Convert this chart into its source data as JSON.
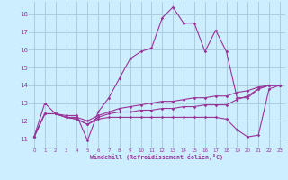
{
  "xlabel": "Windchill (Refroidissement éolien,°C)",
  "background_color": "#cceeff",
  "grid_color": "#aaccdd",
  "line_color": "#993399",
  "x_ticks": [
    0,
    1,
    2,
    3,
    4,
    5,
    6,
    7,
    8,
    9,
    10,
    11,
    12,
    13,
    14,
    15,
    16,
    17,
    18,
    19,
    20,
    21,
    22,
    23
  ],
  "y_ticks": [
    11,
    12,
    13,
    14,
    15,
    16,
    17,
    18
  ],
  "ylim": [
    10.5,
    18.7
  ],
  "xlim": [
    -0.5,
    23.5
  ],
  "series": [
    {
      "x": [
        0,
        1,
        2,
        3,
        4,
        5,
        6,
        7,
        8,
        9,
        10,
        11,
        12,
        13,
        14,
        15,
        16,
        17,
        18,
        19,
        20,
        21,
        22,
        23
      ],
      "y": [
        11.1,
        13.0,
        12.4,
        12.3,
        12.3,
        10.9,
        12.5,
        13.3,
        14.4,
        15.5,
        15.9,
        16.1,
        17.8,
        18.4,
        17.5,
        17.5,
        15.9,
        17.1,
        15.9,
        13.3,
        13.3,
        13.8,
        14.0,
        14.0
      ]
    },
    {
      "x": [
        0,
        1,
        2,
        3,
        4,
        5,
        6,
        7,
        8,
        9,
        10,
        11,
        12,
        13,
        14,
        15,
        16,
        17,
        18,
        19,
        20,
        21,
        22,
        23
      ],
      "y": [
        11.1,
        12.4,
        12.4,
        12.2,
        12.2,
        12.0,
        12.3,
        12.5,
        12.7,
        12.8,
        12.9,
        13.0,
        13.1,
        13.1,
        13.2,
        13.3,
        13.3,
        13.4,
        13.4,
        13.6,
        13.7,
        13.9,
        14.0,
        14.0
      ]
    },
    {
      "x": [
        0,
        1,
        2,
        3,
        4,
        5,
        6,
        7,
        8,
        9,
        10,
        11,
        12,
        13,
        14,
        15,
        16,
        17,
        18,
        19,
        20,
        21,
        22,
        23
      ],
      "y": [
        11.1,
        12.4,
        12.4,
        12.2,
        12.1,
        11.8,
        12.2,
        12.4,
        12.5,
        12.5,
        12.6,
        12.6,
        12.7,
        12.7,
        12.8,
        12.8,
        12.9,
        12.9,
        12.9,
        13.2,
        13.4,
        13.8,
        14.0,
        14.0
      ]
    },
    {
      "x": [
        0,
        1,
        2,
        3,
        4,
        5,
        6,
        7,
        8,
        9,
        10,
        11,
        12,
        13,
        14,
        15,
        16,
        17,
        18,
        19,
        20,
        21,
        22,
        23
      ],
      "y": [
        11.1,
        12.4,
        12.4,
        12.2,
        12.1,
        11.8,
        12.1,
        12.2,
        12.2,
        12.2,
        12.2,
        12.2,
        12.2,
        12.2,
        12.2,
        12.2,
        12.2,
        12.2,
        12.1,
        11.5,
        11.1,
        11.2,
        13.8,
        14.0
      ]
    }
  ]
}
